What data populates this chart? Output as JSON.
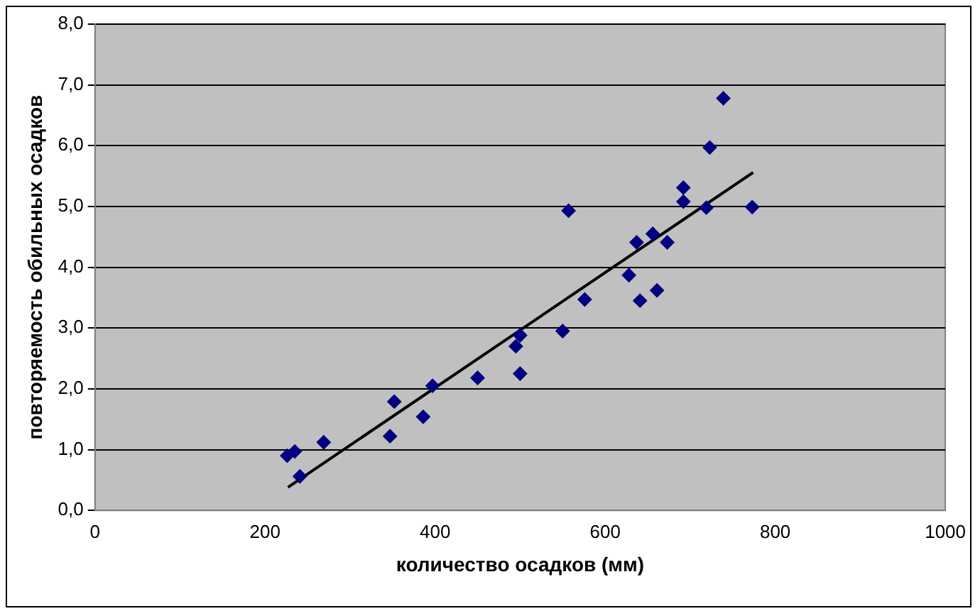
{
  "chart_data": {
    "type": "scatter",
    "xlabel": "количество осадков (мм)",
    "ylabel": "повторяемость обильных осадков",
    "xlim": [
      0,
      1000
    ],
    "xticks": [
      0,
      200,
      400,
      600,
      800,
      1000
    ],
    "ylim": [
      0,
      8
    ],
    "yticks": [
      {
        "value": 0,
        "label": "0,0"
      },
      {
        "value": 1,
        "label": "1,0"
      },
      {
        "value": 2,
        "label": "2,0"
      },
      {
        "value": 3,
        "label": "3,0"
      },
      {
        "value": 4,
        "label": "4,0"
      },
      {
        "value": 5,
        "label": "5,0"
      },
      {
        "value": 6,
        "label": "6,0"
      },
      {
        "value": 7,
        "label": "7,0"
      },
      {
        "value": 8,
        "label": "8,0"
      }
    ],
    "grid": "y",
    "legend": false,
    "marker": "diamond",
    "series": [
      {
        "type": "scatter",
        "color": "#000080",
        "x": [
          226,
          235,
          241,
          269,
          347,
          352,
          386,
          397,
          450,
          496,
          500,
          495,
          500,
          550,
          557,
          576,
          628,
          637,
          641,
          656,
          661,
          673,
          692,
          692,
          719,
          723,
          739,
          773
        ],
        "values": [
          0.9,
          0.97,
          0.56,
          1.12,
          1.22,
          1.79,
          1.54,
          2.05,
          2.18,
          null,
          2.25,
          2.7,
          2.88,
          2.95,
          4.93,
          3.47,
          3.87,
          4.41,
          3.45,
          4.55,
          3.62,
          4.41,
          5.31,
          5.08,
          4.98,
          5.97,
          6.78,
          4.99
        ]
      },
      {
        "type": "line",
        "color": "#000000",
        "x": [
          227,
          774
        ],
        "values": [
          0.38,
          5.56
        ],
        "marker": "none"
      }
    ]
  }
}
